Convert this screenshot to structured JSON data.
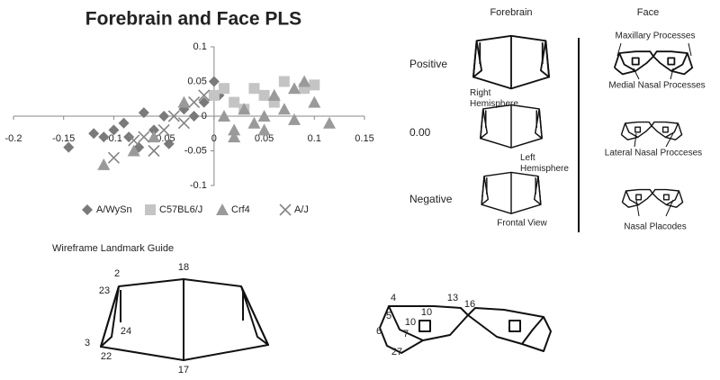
{
  "chart_data": {
    "type": "scatter",
    "title": "Forebrain and Face PLS",
    "xlim": [
      -0.2,
      0.15
    ],
    "ylim": [
      -0.1,
      0.1
    ],
    "xticks": [
      -0.2,
      -0.15,
      -0.1,
      -0.05,
      0,
      0.05,
      0.1,
      0.15
    ],
    "yticks": [
      -0.1,
      -0.05,
      0,
      0.05,
      0.1
    ],
    "legend": "bottom",
    "series": [
      {
        "name": "A/WySn",
        "color": "#7a7a7a",
        "marker": "diamond",
        "x": [
          -0.145,
          -0.12,
          -0.11,
          -0.1,
          -0.09,
          -0.085,
          -0.075,
          -0.07,
          -0.06,
          -0.05,
          -0.045,
          -0.03,
          -0.02,
          -0.01,
          0.0,
          0.005
        ],
        "y": [
          -0.045,
          -0.025,
          -0.03,
          -0.02,
          -0.01,
          -0.03,
          -0.045,
          0.005,
          -0.02,
          0.0,
          -0.04,
          0.01,
          0.0,
          0.02,
          0.05,
          0.03
        ]
      },
      {
        "name": "C57BL6/J",
        "color": "#c4c4c4",
        "marker": "square",
        "x": [
          0.0,
          0.01,
          0.02,
          0.03,
          0.04,
          0.05,
          0.06,
          0.07,
          0.09,
          0.1
        ],
        "y": [
          0.03,
          0.04,
          0.02,
          0.01,
          0.04,
          0.03,
          0.02,
          0.05,
          0.04,
          0.045
        ]
      },
      {
        "name": "Crf4",
        "color": "#9a9a9a",
        "marker": "triangle",
        "x": [
          -0.11,
          -0.08,
          -0.06,
          -0.03,
          0.01,
          0.02,
          0.02,
          0.03,
          0.04,
          0.05,
          0.05,
          0.06,
          0.07,
          0.08,
          0.08,
          0.09,
          0.1,
          0.115
        ],
        "y": [
          -0.07,
          -0.05,
          -0.03,
          0.02,
          0.0,
          -0.03,
          -0.02,
          0.01,
          -0.01,
          0.0,
          -0.02,
          0.03,
          0.01,
          0.04,
          -0.005,
          0.05,
          0.02,
          -0.01
        ]
      },
      {
        "name": "A/J",
        "color": "#858585",
        "marker": "x",
        "x": [
          -0.1,
          -0.08,
          -0.07,
          -0.06,
          -0.05,
          -0.04,
          -0.03,
          -0.02,
          -0.01
        ],
        "y": [
          -0.06,
          -0.035,
          -0.03,
          -0.05,
          -0.02,
          0.0,
          -0.01,
          0.02,
          0.03
        ]
      }
    ]
  },
  "forebrain_panel": {
    "title": "Forebrain",
    "rows": [
      "Positive",
      "0.00",
      "Negative"
    ],
    "annotations": [
      "Right Hemisphere",
      "Left Hemisphere",
      "Frontal View"
    ]
  },
  "face_panel": {
    "title": "Face",
    "labels": [
      "Maxillary Processes",
      "Medial Nasal Processes",
      "Lateral Nasal Procceses",
      "Nasal Placodes"
    ]
  },
  "landmark_guide": {
    "title": "Wireframe Landmark Guide",
    "forebrain_landmarks": [
      "18",
      "2",
      "23",
      "24",
      "3",
      "22",
      "17"
    ],
    "face_landmarks": [
      "4",
      "13",
      "16",
      "5",
      "10",
      "10",
      "6",
      "7",
      "27"
    ]
  }
}
